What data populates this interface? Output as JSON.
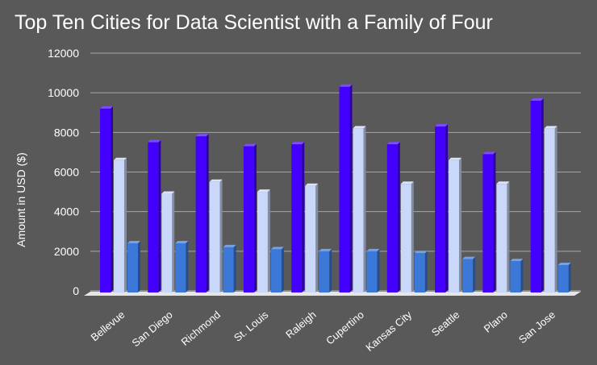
{
  "chart_data": {
    "type": "bar",
    "title": "Top Ten Cities for Data Scientist with a Family of Four",
    "xlabel": "",
    "ylabel": "Amount in USD ($)",
    "ylim": [
      0,
      12000
    ],
    "yticks": [
      "0",
      "2000",
      "4000",
      "6000",
      "8000",
      "10000",
      "12000"
    ],
    "categories": [
      "Bellevue",
      "San Diego",
      "Richmond",
      "St. Louis",
      "Raleigh",
      "Cupertino",
      "Kansas City",
      "Seattle",
      "Plano",
      "San Jose"
    ],
    "series": [
      {
        "color": "#4400ff",
        "values": [
          9200,
          7500,
          7800,
          7300,
          7400,
          10300,
          7400,
          8300,
          6900,
          9600
        ]
      },
      {
        "color": "#c9d7f8",
        "values": [
          6600,
          4900,
          5500,
          5000,
          5300,
          8200,
          5400,
          6600,
          5400,
          8200
        ]
      },
      {
        "color": "#3c78d8",
        "values": [
          2400,
          2400,
          2200,
          2100,
          2000,
          2000,
          1900,
          1600,
          1500,
          1300
        ]
      }
    ],
    "grid": true,
    "legend": "none"
  }
}
